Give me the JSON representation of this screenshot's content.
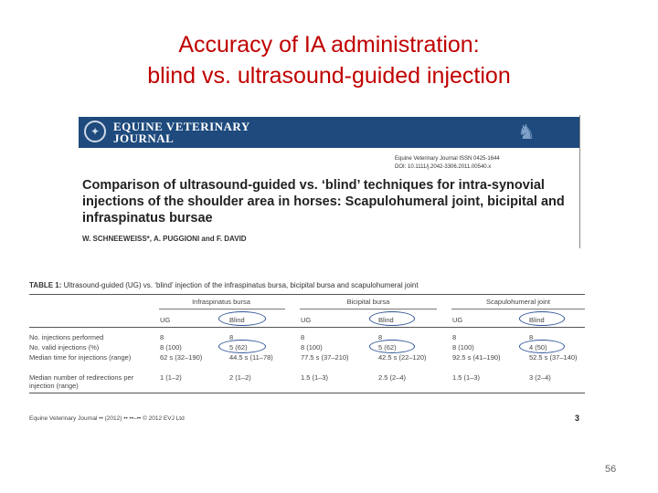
{
  "slide": {
    "title_line1": "Accuracy of IA administration:",
    "title_line2": "blind vs. ultrasound-guided injection",
    "number": "56"
  },
  "journal": {
    "name_line1": "EQUINE VETERINARY",
    "name_line2": "JOURNAL",
    "meta_line1": "Equine Veterinary Journal ISSN 0425-1644",
    "meta_line2": "DOI: 10.1111/j.2042-3306.2011.00540.x",
    "article_title": "Comparison of ultrasound-guided vs. ‘blind’ techniques for intra-synovial injections of the shoulder area in horses: Scapulohumeral joint, bicipital and infraspinatus bursae",
    "authors": "W. SCHNEEWEISS*, A. PUGGIONI and F. DAVID"
  },
  "table": {
    "caption_label": "TABLE 1:",
    "caption_text": "Ultrasound-guided (UG) vs. ‘blind’ injection of the infraspinatus bursa, bicipital bursa and scapulohumeral joint",
    "groups": [
      "Infraspinatus bursa",
      "Bicipital bursa",
      "Scapulohumeral joint"
    ],
    "col_headers": [
      "UG",
      "Blind",
      "UG",
      "Blind",
      "UG",
      "Blind"
    ],
    "rows": [
      {
        "label": "No. injections performed",
        "cells": [
          "8",
          "8",
          "8",
          "8",
          "8",
          "8"
        ]
      },
      {
        "label": "No. valid injections (%)",
        "cells": [
          "8 (100)",
          "5 (62)",
          "8 (100)",
          "5 (62)",
          "8 (100)",
          "4 (50)"
        ]
      },
      {
        "label": "Median time for injections (range)",
        "cells": [
          "62 s (32–190)",
          "44.5 s (11–78)",
          "77.5 s (37–210)",
          "42.5 s (22–120)",
          "92.5 s (41–190)",
          "52.5 s (37–140)"
        ]
      },
      {
        "label": "Median number of redirections per injection (range)",
        "cells": [
          "1 (1–2)",
          "2 (1–2)",
          "1.5 (1–3)",
          "2.5 (2–4)",
          "1.5 (1–3)",
          "3 (2–4)"
        ]
      }
    ],
    "footer": "Equine Veterinary Journal •• (2012) •• ••–•• © 2012 EVJ Ltd",
    "page": "3"
  },
  "colors": {
    "title": "#c00000",
    "journal_header": "#1e4a7d",
    "highlight": "#2f5597"
  }
}
